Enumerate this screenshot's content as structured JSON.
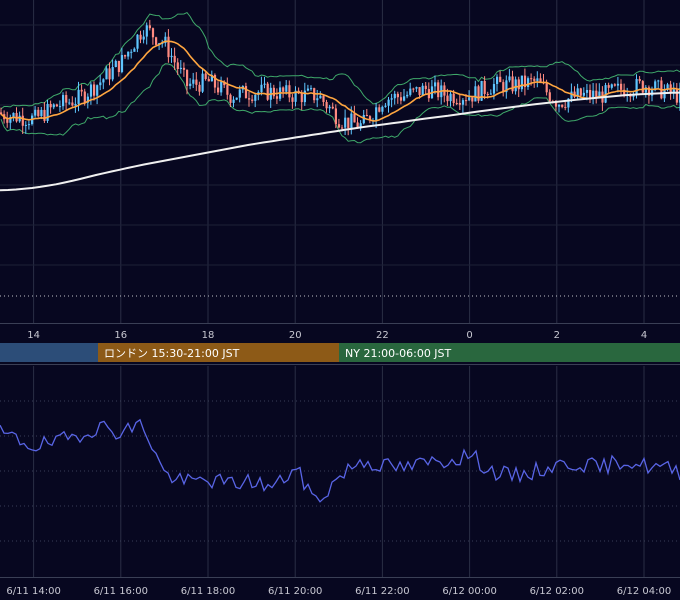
{
  "chart_data": [
    {
      "type": "candlestick",
      "title": "",
      "x_ticks": [
        "14",
        "16",
        "18",
        "20",
        "22",
        "0",
        "2",
        "4"
      ],
      "hours": [
        13.0,
        13.5,
        14.0,
        14.5,
        15.0,
        15.5,
        16.0,
        16.5,
        17.0,
        17.5,
        18.0,
        18.5,
        19.0,
        19.5,
        20.0,
        20.5,
        21.0,
        21.5,
        22.0,
        22.5,
        23.0,
        23.5,
        24.0,
        24.5,
        25.0,
        25.5,
        26.0,
        26.5,
        27.0,
        27.5,
        28.0,
        28.5,
        29.0,
        29.5
      ],
      "price_path": [
        6.4,
        6.3,
        6.2,
        6.6,
        6.8,
        7.3,
        7.9,
        8.9,
        8.4,
        7.2,
        7.3,
        6.9,
        7.0,
        7.0,
        6.9,
        6.9,
        6.2,
        6.0,
        6.8,
        6.9,
        7.1,
        6.9,
        6.9,
        7.2,
        7.2,
        7.3,
        6.7,
        6.9,
        6.9,
        7.1,
        7.2,
        7.0,
        6.8,
        6.9
      ],
      "sma_200_path": [
        4.1,
        4.12,
        4.18,
        4.28,
        4.42,
        4.58,
        4.72,
        4.86,
        4.98,
        5.1,
        5.22,
        5.34,
        5.46,
        5.56,
        5.66,
        5.76,
        5.86,
        5.96,
        6.04,
        6.13,
        6.22,
        6.3,
        6.39,
        6.48,
        6.56,
        6.64,
        6.71,
        6.78,
        6.84,
        6.9,
        6.94,
        6.97,
        6.99,
        7.01
      ],
      "series": [
        {
          "name": "",
          "color": "#5fc6ff",
          "kind": "bullish candle"
        },
        {
          "name": "",
          "color": "#ff8a80",
          "kind": "bearish candle"
        },
        {
          "name": "",
          "color": "#ffa640",
          "kind": "moving average"
        },
        {
          "name": "",
          "color": "#f0f0f0",
          "kind": "moving average"
        },
        {
          "name": "",
          "color": "#3fa96a",
          "kind": "bollinger bands"
        }
      ],
      "grid": true,
      "hline_dotted": true
    },
    {
      "type": "line",
      "title": "",
      "x_labels": [
        "6/11 14:00",
        "6/11 16:00",
        "6/11 18:00",
        "6/11 20:00",
        "6/11 22:00",
        "6/12 00:00",
        "6/12 02:00",
        "6/12 04:00"
      ],
      "hours": [
        13.0,
        13.5,
        14.0,
        14.5,
        15.0,
        15.5,
        16.0,
        16.5,
        17.0,
        17.5,
        18.0,
        18.5,
        19.0,
        19.5,
        20.0,
        20.5,
        21.0,
        21.5,
        22.0,
        22.5,
        23.0,
        23.5,
        24.0,
        24.5,
        25.0,
        25.5,
        26.0,
        26.5,
        27.0,
        27.5,
        28.0,
        28.5,
        29.0,
        29.5
      ],
      "values": [
        0.72,
        0.66,
        0.6,
        0.62,
        0.68,
        0.74,
        0.7,
        0.76,
        0.4,
        0.34,
        0.36,
        0.33,
        0.35,
        0.3,
        0.44,
        0.2,
        0.38,
        0.5,
        0.46,
        0.44,
        0.48,
        0.5,
        0.54,
        0.42,
        0.38,
        0.42,
        0.46,
        0.48,
        0.44,
        0.5,
        0.46,
        0.44,
        0.4,
        0.42
      ],
      "series": [
        {
          "name": "",
          "color": "#5965e6"
        }
      ],
      "grid": true
    }
  ],
  "sessions": [
    {
      "label": "",
      "color": "#2c4d78"
    },
    {
      "label": "ロンドン 15:30-21:00 JST",
      "color": "#8d5a17"
    },
    {
      "label": "NY 21:00-06:00 JST",
      "color": "#29673e"
    }
  ]
}
